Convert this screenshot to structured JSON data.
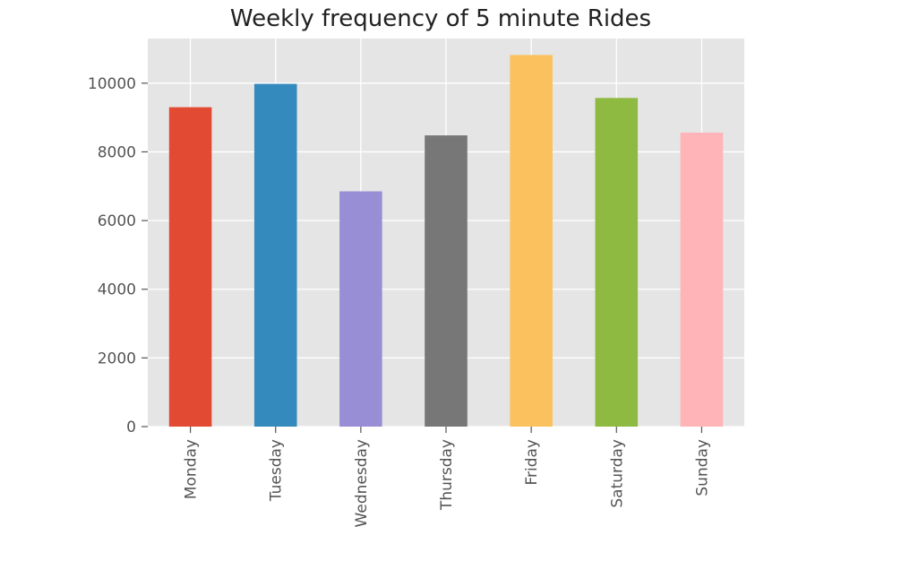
{
  "chart_data": {
    "type": "bar",
    "title": "Weekly frequency of 5 minute Rides",
    "xlabel": "",
    "ylabel": "",
    "categories": [
      "Monday",
      "Tuesday",
      "Wednesday",
      "Thursday",
      "Friday",
      "Saturday",
      "Sunday"
    ],
    "values": [
      9300,
      9980,
      6850,
      8480,
      10820,
      9570,
      8560
    ],
    "colors": [
      "#E24A33",
      "#348ABD",
      "#988ED5",
      "#777777",
      "#FBC15E",
      "#8EBA42",
      "#FFB5B8"
    ],
    "ylim": [
      0,
      11300
    ],
    "yticks": [
      0,
      2000,
      4000,
      6000,
      8000,
      10000
    ],
    "ytick_labels": [
      "0",
      "2000",
      "4000",
      "6000",
      "8000",
      "10000"
    ],
    "grid": true,
    "style": {
      "background": "#E5E5E5",
      "gridline": "#FFFFFF",
      "tick_text": "#555555"
    }
  }
}
